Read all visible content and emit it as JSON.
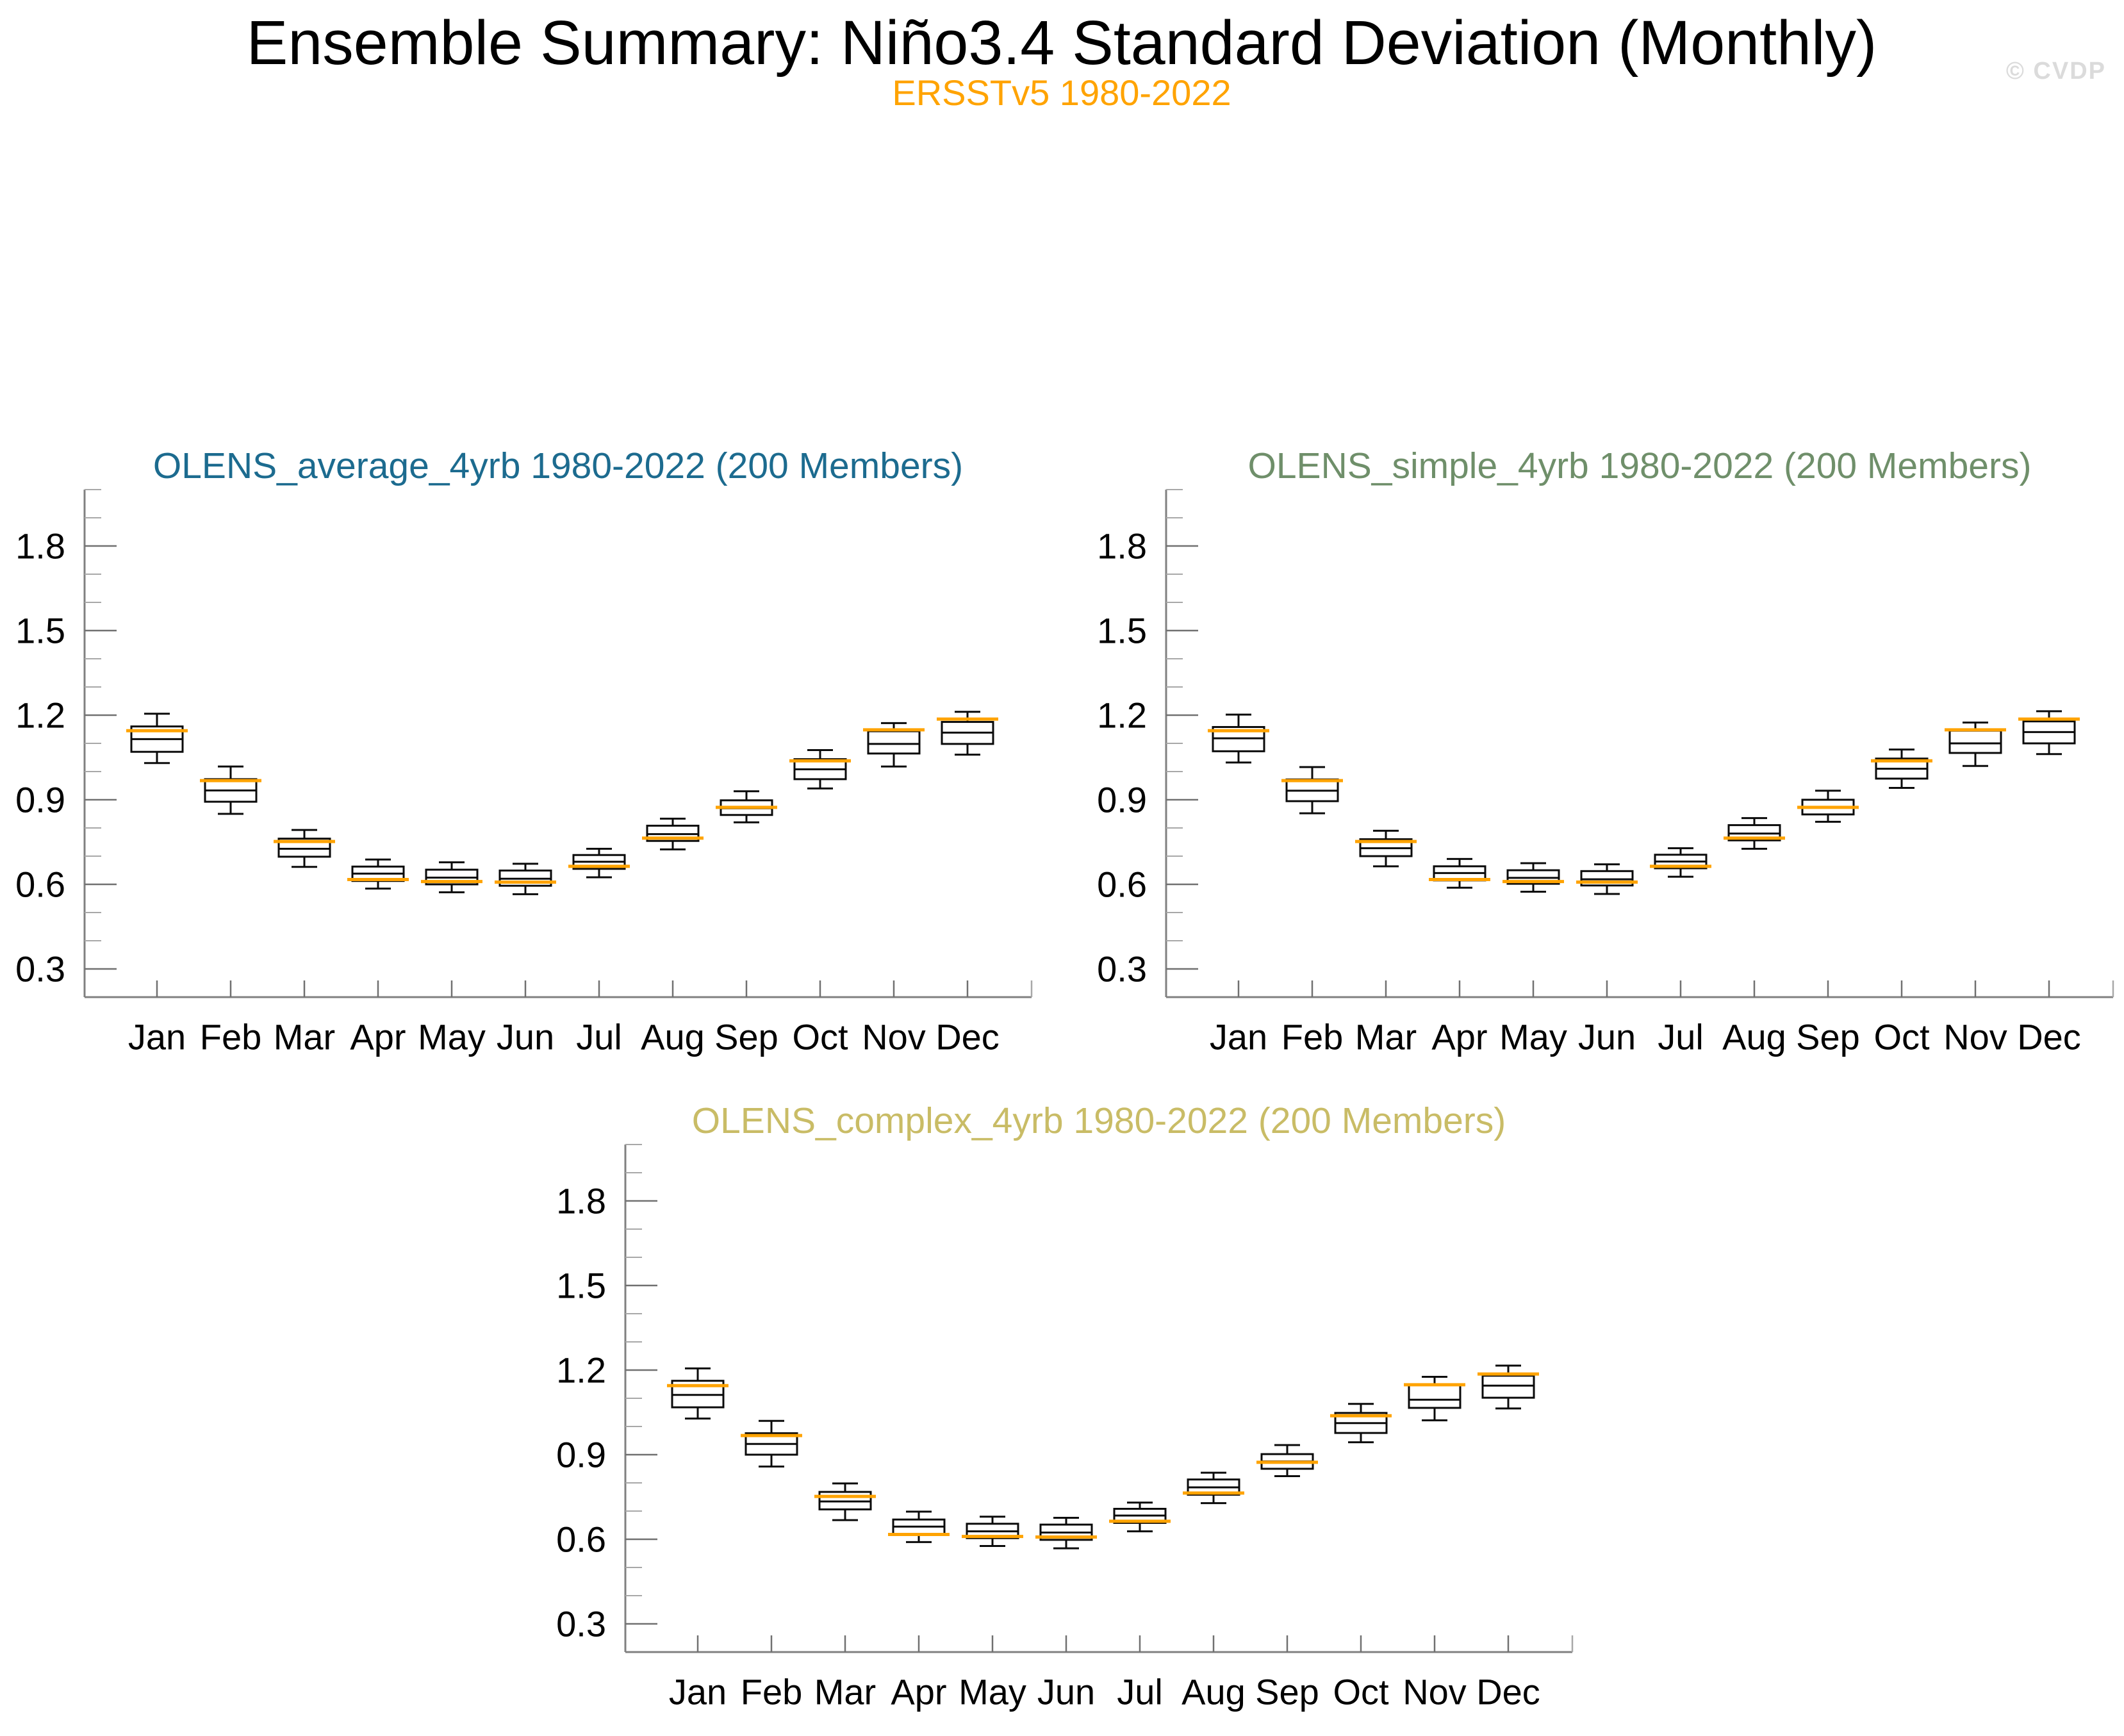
{
  "header": {
    "title": "Ensemble Summary: Niño3.4 Standard Deviation (Monthly)",
    "subtitle": "ERSSTv5 1980-2022",
    "subtitle_color": "#FFA300",
    "watermark": "© CVDP",
    "watermark_color": "#DBDBDB"
  },
  "chart_data": [
    {
      "type": "boxplot",
      "key": "average",
      "title": "OLENS_average_4yrb 1980-2022 (200 Members)",
      "title_color": "#1C6B8F",
      "obs_label": "ERSSTv5 1980-2022",
      "obs_line_color": "#FFA300",
      "categories": [
        "Jan",
        "Feb",
        "Mar",
        "Apr",
        "May",
        "Jun",
        "Jul",
        "Aug",
        "Sep",
        "Oct",
        "Nov",
        "Dec"
      ],
      "y_axis": {
        "min": 0.2,
        "max": 2.0,
        "major_ticks": [
          0.3,
          0.6,
          0.9,
          1.2,
          1.5,
          1.8
        ],
        "tick_labels": [
          "0.3",
          "0.6",
          "0.9",
          "1.2",
          "1.5",
          "1.8"
        ],
        "minor_step": 0.1,
        "grid": false
      },
      "series": {
        "whisker_high": [
          1.205,
          1.018,
          0.793,
          0.688,
          0.678,
          0.673,
          0.726,
          0.833,
          0.93,
          1.076,
          1.172,
          1.212
        ],
        "box_high": [
          1.16,
          0.973,
          0.762,
          0.663,
          0.652,
          0.649,
          0.704,
          0.808,
          0.898,
          1.044,
          1.143,
          1.176
        ],
        "median": [
          1.115,
          0.933,
          0.726,
          0.638,
          0.624,
          0.62,
          0.68,
          0.778,
          0.87,
          1.008,
          1.098,
          1.138
        ],
        "box_low": [
          1.07,
          0.893,
          0.698,
          0.612,
          0.6,
          0.595,
          0.655,
          0.754,
          0.846,
          0.973,
          1.064,
          1.098
        ],
        "whisker_low": [
          1.03,
          0.85,
          0.662,
          0.585,
          0.572,
          0.565,
          0.625,
          0.724,
          0.82,
          0.94,
          1.018,
          1.06
        ],
        "observed": [
          1.145,
          0.968,
          0.752,
          0.617,
          0.61,
          0.608,
          0.664,
          0.764,
          0.873,
          1.038,
          1.148,
          1.186
        ]
      }
    },
    {
      "type": "boxplot",
      "key": "simple",
      "title": "OLENS_simple_4yrb 1980-2022 (200 Members)",
      "title_color": "#6F8F6A",
      "obs_label": "ERSSTv5 1980-2022",
      "obs_line_color": "#FFA300",
      "categories": [
        "Jan",
        "Feb",
        "Mar",
        "Apr",
        "May",
        "Jun",
        "Jul",
        "Aug",
        "Sep",
        "Oct",
        "Nov",
        "Dec"
      ],
      "y_axis": {
        "min": 0.2,
        "max": 2.0,
        "major_ticks": [
          0.3,
          0.6,
          0.9,
          1.2,
          1.5,
          1.8
        ],
        "tick_labels": [
          "0.3",
          "0.6",
          "0.9",
          "1.2",
          "1.5",
          "1.8"
        ],
        "minor_step": 0.1,
        "grid": false
      },
      "series": {
        "whisker_high": [
          1.202,
          1.016,
          0.79,
          0.69,
          0.675,
          0.671,
          0.728,
          0.835,
          0.932,
          1.078,
          1.174,
          1.214
        ],
        "box_high": [
          1.158,
          0.972,
          0.76,
          0.664,
          0.65,
          0.647,
          0.705,
          0.81,
          0.9,
          1.046,
          1.145,
          1.178
        ],
        "median": [
          1.118,
          0.932,
          0.728,
          0.64,
          0.623,
          0.618,
          0.681,
          0.78,
          0.872,
          1.01,
          1.1,
          1.14
        ],
        "box_low": [
          1.072,
          0.895,
          0.7,
          0.614,
          0.602,
          0.596,
          0.657,
          0.756,
          0.848,
          0.975,
          1.066,
          1.1
        ],
        "whisker_low": [
          1.032,
          0.852,
          0.664,
          0.588,
          0.574,
          0.566,
          0.627,
          0.726,
          0.822,
          0.942,
          1.02,
          1.062
        ],
        "observed": [
          1.145,
          0.968,
          0.752,
          0.617,
          0.61,
          0.608,
          0.664,
          0.764,
          0.873,
          1.038,
          1.148,
          1.186
        ]
      }
    },
    {
      "type": "boxplot",
      "key": "complex",
      "title": "OLENS_complex_4yrb 1980-2022 (200 Members)",
      "title_color": "#C9BC66",
      "obs_label": "ERSSTv5 1980-2022",
      "obs_line_color": "#FFA300",
      "categories": [
        "Jan",
        "Feb",
        "Mar",
        "Apr",
        "May",
        "Jun",
        "Jul",
        "Aug",
        "Sep",
        "Oct",
        "Nov",
        "Dec"
      ],
      "y_axis": {
        "min": 0.2,
        "max": 2.0,
        "major_ticks": [
          0.3,
          0.6,
          0.9,
          1.2,
          1.5,
          1.8
        ],
        "tick_labels": [
          "0.3",
          "0.6",
          "0.9",
          "1.2",
          "1.5",
          "1.8"
        ],
        "minor_step": 0.1,
        "grid": false
      },
      "series": {
        "whisker_high": [
          1.206,
          1.02,
          0.798,
          0.698,
          0.68,
          0.676,
          0.73,
          0.836,
          0.934,
          1.08,
          1.176,
          1.216
        ],
        "box_high": [
          1.162,
          0.976,
          0.768,
          0.67,
          0.655,
          0.652,
          0.708,
          0.812,
          0.902,
          1.048,
          1.148,
          1.18
        ],
        "median": [
          1.112,
          0.938,
          0.734,
          0.645,
          0.628,
          0.624,
          0.684,
          0.784,
          0.876,
          1.012,
          1.095,
          1.145
        ],
        "box_low": [
          1.068,
          0.9,
          0.706,
          0.616,
          0.604,
          0.598,
          0.658,
          0.758,
          0.85,
          0.977,
          1.066,
          1.102
        ],
        "whisker_low": [
          1.028,
          0.858,
          0.668,
          0.59,
          0.576,
          0.568,
          0.628,
          0.728,
          0.824,
          0.944,
          1.022,
          1.064
        ],
        "observed": [
          1.145,
          0.968,
          0.752,
          0.617,
          0.61,
          0.608,
          0.664,
          0.764,
          0.873,
          1.038,
          1.148,
          1.186
        ]
      }
    }
  ]
}
